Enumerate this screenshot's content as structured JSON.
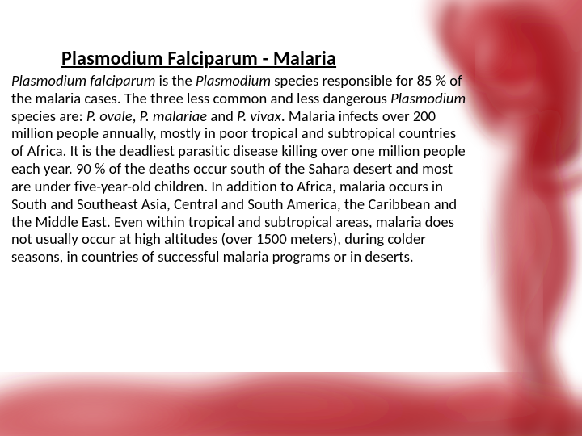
{
  "title": "Plasmodium Falciparum - Malaria",
  "body_html": "<em>Plasmodium falciparum</em> is the <em>Plasmodium</em> species responsible for 85 % of the malaria cases. The three less common and less dangerous <em>Plasmodium</em> species are: <em>P. ovale</em>, <em>P. malariae</em> and <em>P. vivax</em>. Malaria infects over 200 million people annually, mostly in poor tropical and subtropical countries of Africa. It is the deadliest parasitic disease killing over one million people each year. 90 % of the deaths occur south of the Sahara desert and most are under five-year-old children. In addition to Africa, malaria occurs in South and Southeast Asia, Central and South America, the Caribbean and the Middle East. Even within tropical and subtropical areas, malaria does not usually occur at high altitudes (over 1500 meters), during colder seasons, in countries of successful malaria programs or in deserts.",
  "smoke": {
    "color_dark": "#a3121a",
    "color_mid": "#c0232b",
    "color_light": "#e68a8f",
    "color_pale": "#f4cfd1",
    "background": "#ffffff"
  },
  "title_fontsize": 24,
  "body_fontsize": 18.5,
  "body_lineheight": 1.18,
  "text_color": "#000000"
}
